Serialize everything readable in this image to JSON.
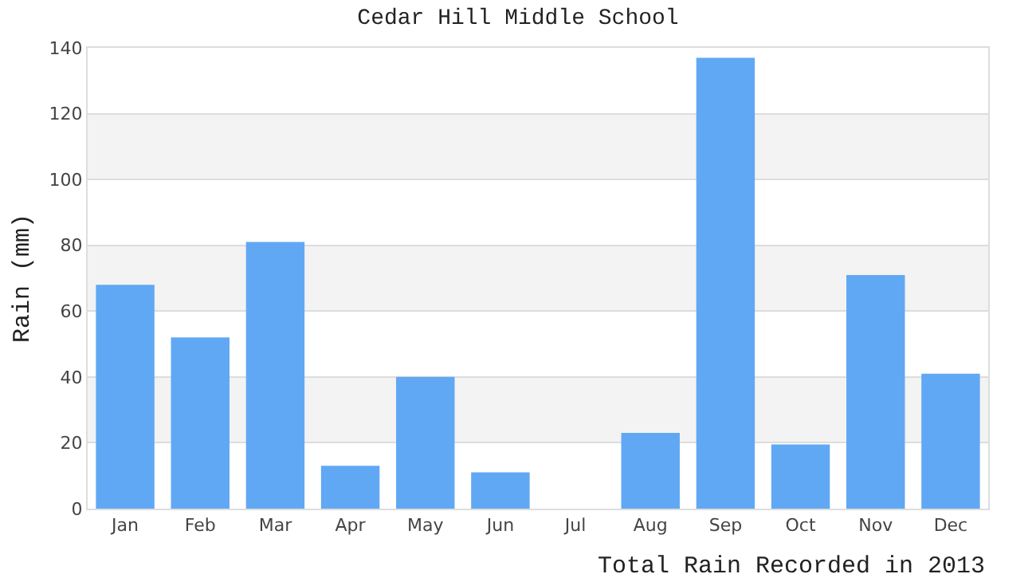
{
  "chart_data": {
    "type": "bar",
    "title": "Cedar Hill Middle School",
    "xlabel": "Total Rain Recorded in 2013",
    "ylabel": "Rain (mm)",
    "categories": [
      "Jan",
      "Feb",
      "Mar",
      "Apr",
      "May",
      "Jun",
      "Jul",
      "Aug",
      "Sep",
      "Oct",
      "Nov",
      "Dec"
    ],
    "values": [
      68,
      52,
      81,
      13,
      40,
      11,
      0,
      23,
      137,
      19.5,
      71,
      41
    ],
    "color": "#60a8f4",
    "ylim": [
      0,
      140
    ],
    "yticks": [
      0,
      20,
      40,
      60,
      80,
      100,
      120,
      140
    ],
    "grid": "y",
    "legend": false,
    "bands": [
      {
        "axis": "y",
        "from": 20,
        "to": 40,
        "color": "#f3f3f3"
      },
      {
        "axis": "y",
        "from": 60,
        "to": 80,
        "color": "#f3f3f3"
      },
      {
        "axis": "y",
        "from": 100,
        "to": 120,
        "color": "#f3f3f3"
      }
    ]
  }
}
